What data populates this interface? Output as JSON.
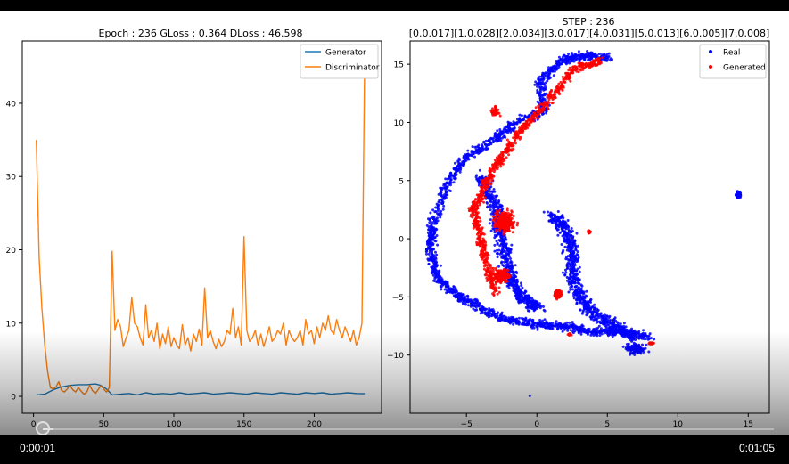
{
  "player": {
    "current_time": "0:00:01",
    "total_time": "0:01:05",
    "progress": 0.015
  },
  "colors": {
    "generator": "#1f77b4",
    "discriminator": "#ff7f0e",
    "real": "#0000ff",
    "generated": "#ff0000"
  },
  "chart_data": [
    {
      "type": "line",
      "title": "Epoch : 236 GLoss : 0.364 DLoss : 46.598",
      "xlabel": "",
      "ylabel": "",
      "xlim": [
        -8,
        248
      ],
      "ylim": [
        -2.3,
        48.5
      ],
      "xticks": [
        0,
        50,
        100,
        150,
        200
      ],
      "yticks": [
        0,
        10,
        20,
        30,
        40
      ],
      "legend": "top-right",
      "grid": false,
      "series": [
        {
          "name": "Generator",
          "x": [
            2,
            8,
            14,
            20,
            26,
            32,
            38,
            44,
            48,
            52,
            56,
            62,
            68,
            74,
            80,
            86,
            92,
            98,
            104,
            110,
            116,
            122,
            128,
            134,
            140,
            146,
            152,
            158,
            164,
            170,
            176,
            182,
            188,
            194,
            200,
            206,
            212,
            218,
            224,
            230,
            236
          ],
          "values": [
            0.2,
            0.3,
            0.9,
            1.3,
            1.5,
            1.6,
            1.6,
            1.7,
            1.5,
            1.0,
            0.2,
            0.3,
            0.4,
            0.2,
            0.5,
            0.3,
            0.4,
            0.3,
            0.5,
            0.3,
            0.4,
            0.5,
            0.3,
            0.4,
            0.5,
            0.4,
            0.3,
            0.5,
            0.4,
            0.3,
            0.5,
            0.4,
            0.3,
            0.5,
            0.4,
            0.5,
            0.3,
            0.4,
            0.5,
            0.4,
            0.36
          ]
        },
        {
          "name": "Discriminator",
          "x": [
            2,
            4,
            6,
            8,
            10,
            12,
            14,
            16,
            18,
            20,
            22,
            24,
            26,
            28,
            30,
            32,
            34,
            36,
            38,
            40,
            42,
            44,
            46,
            48,
            50,
            52,
            54,
            56,
            58,
            60,
            62,
            64,
            66,
            68,
            70,
            72,
            74,
            76,
            78,
            80,
            82,
            84,
            86,
            88,
            90,
            92,
            94,
            96,
            98,
            100,
            102,
            104,
            106,
            108,
            110,
            112,
            114,
            116,
            118,
            120,
            122,
            124,
            126,
            128,
            130,
            132,
            134,
            136,
            138,
            140,
            142,
            144,
            146,
            148,
            150,
            152,
            154,
            156,
            158,
            160,
            162,
            164,
            166,
            168,
            170,
            172,
            174,
            176,
            178,
            180,
            182,
            184,
            186,
            188,
            190,
            192,
            194,
            196,
            198,
            200,
            202,
            204,
            206,
            208,
            210,
            212,
            214,
            216,
            218,
            220,
            222,
            224,
            226,
            228,
            230,
            232,
            234,
            236
          ],
          "values": [
            35.0,
            19.0,
            12.0,
            7.0,
            3.5,
            1.2,
            1.0,
            1.3,
            2.0,
            0.8,
            0.6,
            1.0,
            1.5,
            0.9,
            0.6,
            1.2,
            0.7,
            0.3,
            0.6,
            1.5,
            0.8,
            0.4,
            0.9,
            1.5,
            1.0,
            0.6,
            1.2,
            19.8,
            9.0,
            10.5,
            9.5,
            6.8,
            8.0,
            9.0,
            13.5,
            10.0,
            9.5,
            8.0,
            7.0,
            12.5,
            8.0,
            9.0,
            7.5,
            10.0,
            6.5,
            8.5,
            7.2,
            9.5,
            6.8,
            8.0,
            7.0,
            6.5,
            9.8,
            7.0,
            8.0,
            6.2,
            8.5,
            7.5,
            9.2,
            7.0,
            14.8,
            8.0,
            9.0,
            7.5,
            6.5,
            7.8,
            6.8,
            7.5,
            9.0,
            8.5,
            12.0,
            8.0,
            9.5,
            7.0,
            21.8,
            9.0,
            7.5,
            8.0,
            9.0,
            7.0,
            8.5,
            6.8,
            8.0,
            9.5,
            7.5,
            8.0,
            9.0,
            8.5,
            10.0,
            7.0,
            9.0,
            8.0,
            7.5,
            8.0,
            9.0,
            7.0,
            10.5,
            8.5,
            9.0,
            7.2,
            9.5,
            8.0,
            10.0,
            9.0,
            11.0,
            9.0,
            8.5,
            10.5,
            9.0,
            8.0,
            9.5,
            8.5,
            7.5,
            9.0,
            7.0,
            8.0,
            10.0,
            46.6
          ]
        }
      ]
    },
    {
      "type": "scatter",
      "title": "STEP : 236",
      "subtitle": "[0.0.017][1.0.028][2.0.034][3.0.017][4.0.031][5.0.013][6.0.005][7.0.008]",
      "xlabel": "",
      "ylabel": "",
      "xlim": [
        -9,
        16.5
      ],
      "ylim": [
        -15,
        17
      ],
      "xticks": [
        -5,
        0,
        5,
        10,
        15
      ],
      "yticks": [
        -10,
        -5,
        0,
        5,
        10,
        15
      ],
      "legend": "top-right",
      "grid": false,
      "series": [
        {
          "name": "Real"
        },
        {
          "name": "Generated"
        }
      ]
    }
  ]
}
